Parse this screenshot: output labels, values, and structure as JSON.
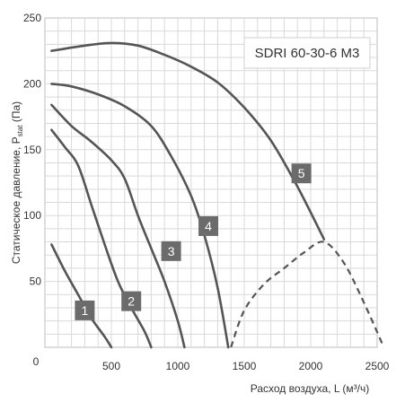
{
  "chart_data": {
    "type": "line",
    "title": "SDRI 60-30-6 M3",
    "xlabel": "Расход воздуха, L (м³/ч)",
    "ylabel_main": "Статическое давление, P",
    "ylabel_sub": "stat",
    "ylabel_tail": " (Па)",
    "xlim": [
      0,
      2500
    ],
    "ylim": [
      0,
      250
    ],
    "x_ticks": [
      0,
      500,
      1000,
      1500,
      2000,
      2500
    ],
    "y_ticks": [
      50,
      100,
      150,
      200,
      250
    ],
    "grid": true,
    "series": [
      {
        "name": "1",
        "label_at": [
          300,
          28
        ],
        "x": [
          50,
          150,
          250,
          350,
          450,
          500
        ],
        "y": [
          78,
          58,
          40,
          22,
          8,
          0
        ]
      },
      {
        "name": "2",
        "label_at": [
          650,
          35
        ],
        "x": [
          50,
          150,
          250,
          350,
          450,
          550,
          650,
          750,
          800
        ],
        "y": [
          165,
          152,
          138,
          108,
          78,
          50,
          30,
          12,
          0
        ]
      },
      {
        "name": "3",
        "label_at": [
          950,
          73
        ],
        "x": [
          50,
          200,
          350,
          500,
          600,
          700,
          800,
          900,
          1000,
          1050
        ],
        "y": [
          184,
          168,
          156,
          142,
          128,
          100,
          75,
          50,
          20,
          0
        ]
      },
      {
        "name": "4",
        "label_at": [
          1230,
          92
        ],
        "x": [
          50,
          200,
          400,
          600,
          800,
          950,
          1100,
          1200,
          1300,
          1380
        ],
        "y": [
          200,
          198,
          192,
          183,
          168,
          145,
          115,
          85,
          45,
          0
        ]
      },
      {
        "name": "5",
        "label_at": [
          1930,
          132
        ],
        "x": [
          50,
          300,
          500,
          700,
          900,
          1100,
          1300,
          1500,
          1700,
          1900,
          2100
        ],
        "y": [
          225,
          229,
          231,
          229,
          222,
          213,
          201,
          182,
          157,
          122,
          82
        ]
      }
    ],
    "limit_curve": {
      "style": "dashed",
      "x": [
        1400,
        1500,
        1650,
        1800,
        1950,
        2100,
        2250,
        2400,
        2550
      ],
      "y": [
        0,
        28,
        48,
        60,
        72,
        80,
        64,
        34,
        0
      ]
    }
  }
}
